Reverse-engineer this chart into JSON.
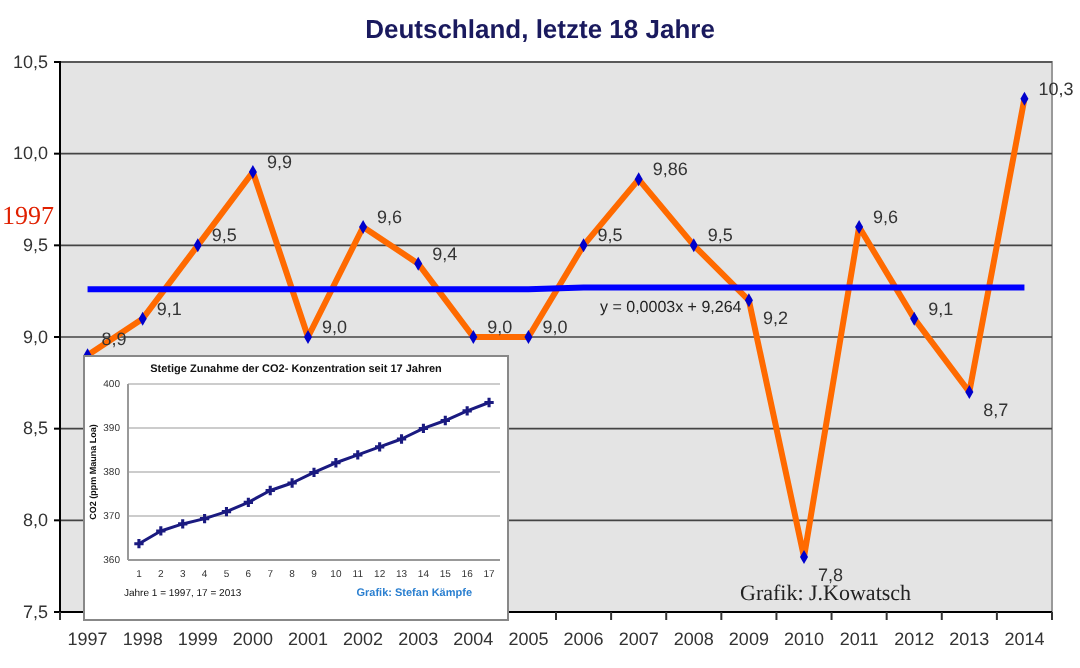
{
  "chart_data": [
    {
      "type": "line",
      "title": "Deutschland, letzte 18 Jahre",
      "categories": [
        "1997",
        "1998",
        "1999",
        "2000",
        "2001",
        "2002",
        "2003",
        "2004",
        "2005",
        "2006",
        "2007",
        "2008",
        "2009",
        "2010",
        "2011",
        "2012",
        "2013",
        "2014"
      ],
      "series": [
        {
          "color": "#ff6a00",
          "values": [
            8.9,
            9.1,
            9.5,
            9.9,
            9.0,
            9.6,
            9.4,
            9.0,
            9.0,
            9.5,
            9.86,
            9.5,
            9.2,
            7.8,
            9.6,
            9.1,
            8.7,
            10.3
          ],
          "value_labels": [
            "8,9",
            "9,1",
            "9,5",
            "9,9",
            "9,0",
            "9,6",
            "9,4",
            "9,0",
            "9,0",
            "9,5",
            "9,86",
            "9,5",
            "9,2",
            "7,8",
            "9,6",
            "9,1",
            "8,7",
            "10,3"
          ]
        },
        {
          "type": "line",
          "color": "#0000ff",
          "marker": "none",
          "values": [
            9.26,
            9.26,
            9.26,
            9.26,
            9.26,
            9.26,
            9.26,
            9.26,
            9.26,
            9.27,
            9.27,
            9.27,
            9.27,
            9.27,
            9.27,
            9.27,
            9.27,
            9.27
          ]
        }
      ],
      "marker": "diamond",
      "ylim": [
        7.5,
        10.5
      ],
      "yticks": [
        {
          "value": 7.5,
          "label": "7,5"
        },
        {
          "value": 8.0,
          "label": "8,0"
        },
        {
          "value": 8.5,
          "label": "8,5"
        },
        {
          "value": 9.0,
          "label": "9,0"
        },
        {
          "value": 9.5,
          "label": "9,5"
        },
        {
          "value": 10.0,
          "label": "10,0"
        },
        {
          "value": 10.5,
          "label": "10,5"
        }
      ],
      "grid": "y",
      "annotations": [
        "y = 0,0003x + 9,264",
        "1997",
        "Grafik: J.Kowatsch"
      ]
    },
    {
      "type": "line",
      "title": "Stetige Zunahme der CO2- Konzentration seit 17 Jahren",
      "ylabel": "CO2 (ppm Mauna Loa)",
      "x": [
        1,
        2,
        3,
        4,
        5,
        6,
        7,
        8,
        9,
        10,
        11,
        12,
        13,
        14,
        15,
        16,
        17
      ],
      "series": [
        {
          "color": "#1a1a80",
          "values": [
            363.7,
            366.6,
            368.2,
            369.4,
            371,
            373.1,
            375.8,
            377.5,
            379.9,
            382.1,
            383.9,
            385.7,
            387.5,
            389.9,
            391.7,
            393.9,
            395.8
          ]
        }
      ],
      "marker": "cross",
      "xlim": [
        0.5,
        17.5
      ],
      "xticks": [
        1,
        2,
        3,
        4,
        5,
        6,
        7,
        8,
        9,
        10,
        11,
        12,
        13,
        14,
        15,
        16,
        17
      ],
      "ylim": [
        360,
        400
      ],
      "yticks": [
        360,
        370,
        380,
        390,
        400
      ],
      "grid": "y",
      "annotations": [
        "Jahre 1 = 1997, 17 = 2013",
        "Grafik: Stefan Kämpfe"
      ]
    }
  ]
}
